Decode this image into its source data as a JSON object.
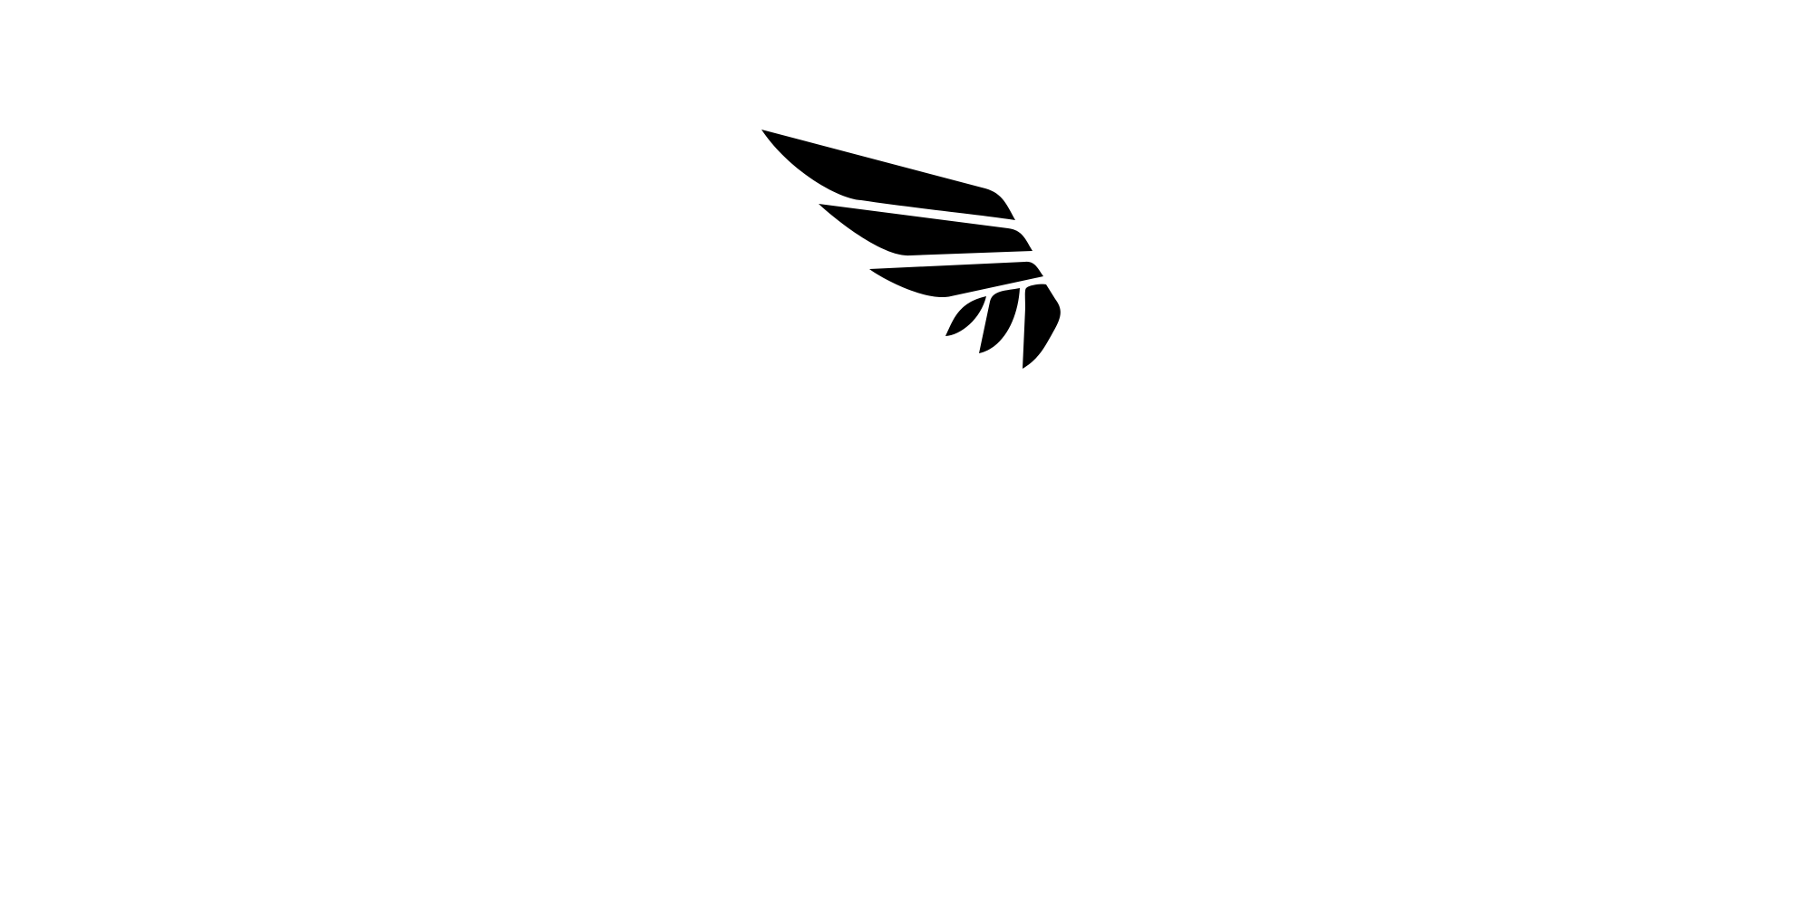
{
  "logo": {
    "icon": "feathered-wing-icon",
    "fill_color": "#000000"
  },
  "background_color": "#ffffff"
}
